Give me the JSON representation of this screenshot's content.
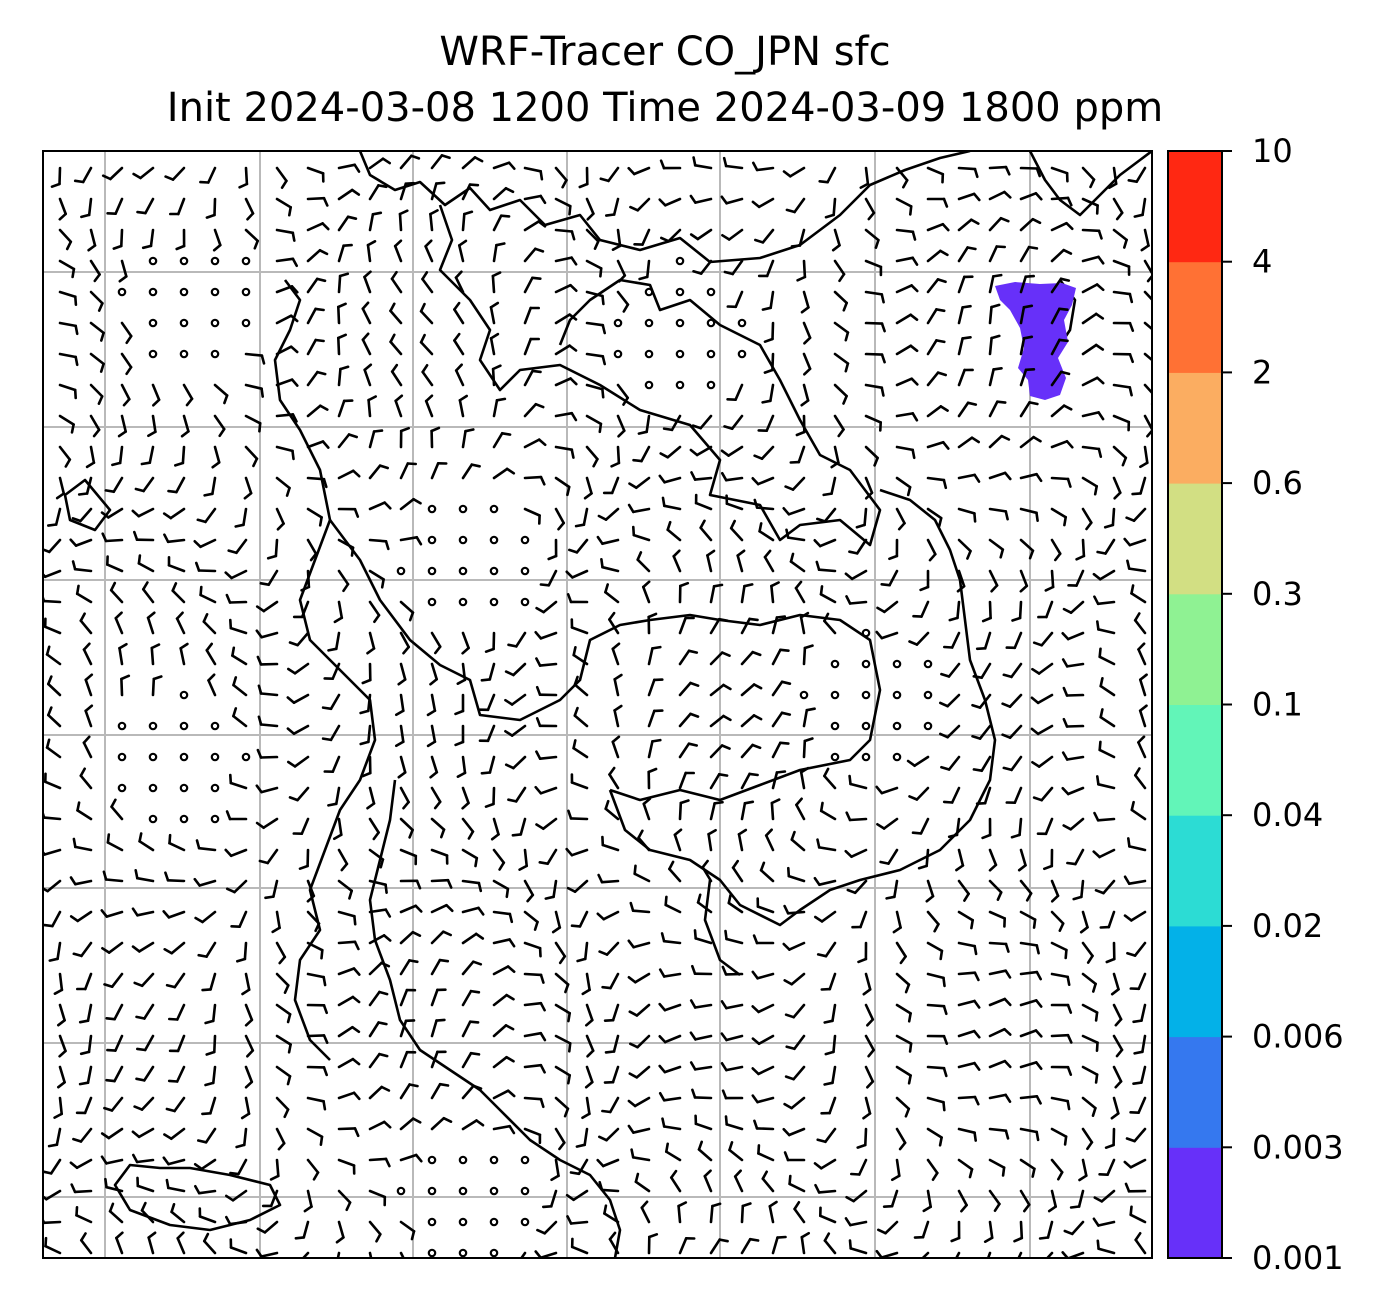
{
  "figure": {
    "title_line1": "WRF-Tracer CO_JPN sfc",
    "title_line2": "Init 2024-03-08 1200 Time 2024-03-09 1800 ppm"
  },
  "colorbar": {
    "levels": [
      "0.001",
      "0.003",
      "0.006",
      "0.02",
      "0.04",
      "0.1",
      "0.3",
      "0.6",
      "2",
      "4",
      "10"
    ],
    "colors": [
      "#6730f9",
      "#3578ef",
      "#03b1e8",
      "#2cdcd4",
      "#62f5b8",
      "#8ff293",
      "#d2df83",
      "#fbad61",
      "#ff7134",
      "#ff2812"
    ]
  },
  "chart_data": {
    "type": "heatmap",
    "variable": "CO tracer concentration at surface",
    "unit": "ppm",
    "overlay": "surface wind barbs",
    "contour_levels": [
      0.001,
      0.003,
      0.006,
      0.02,
      0.04,
      0.1,
      0.3,
      0.6,
      2,
      4,
      10
    ],
    "plume": {
      "range": [
        0.001,
        0.003
      ],
      "color": "#6730f9",
      "location": "upper-right"
    },
    "grid": true
  }
}
